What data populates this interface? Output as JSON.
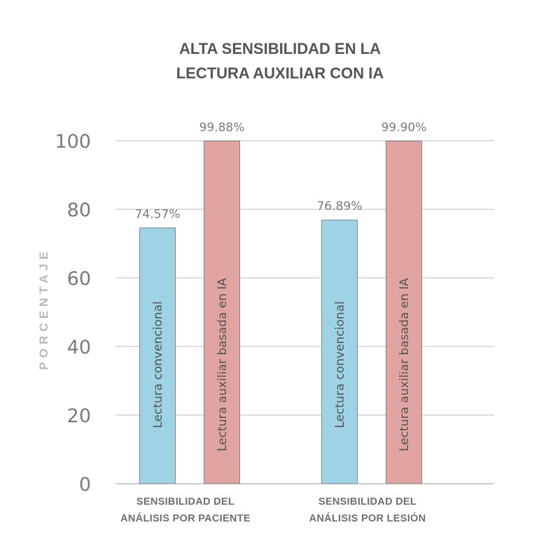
{
  "chart_data": {
    "type": "bar",
    "title": [
      "ALTA SENSIBILIDAD EN LA",
      "LECTURA AUXILIAR CON IA"
    ],
    "ylabel": "PORCENTAJE",
    "ylim": [
      0,
      100
    ],
    "yticks": [
      0,
      20,
      40,
      60,
      80,
      100
    ],
    "grid": true,
    "categories": [
      [
        "SENSIBILIDAD DEL",
        "ANÁLISIS POR PACIENTE"
      ],
      [
        "SENSIBILIDAD DEL",
        "ANÁLISIS POR LESIÓN"
      ]
    ],
    "series": [
      {
        "name": "Lectura convencional",
        "color": "#9dd3e4",
        "values": [
          74.57,
          76.89
        ],
        "labels": [
          "74.57%",
          "76.89%"
        ]
      },
      {
        "name": "Lectura auxiliar basada en IA",
        "color": "#e0a4a2",
        "values": [
          99.88,
          99.9
        ],
        "labels": [
          "99.88%",
          "99.90%"
        ]
      }
    ]
  }
}
